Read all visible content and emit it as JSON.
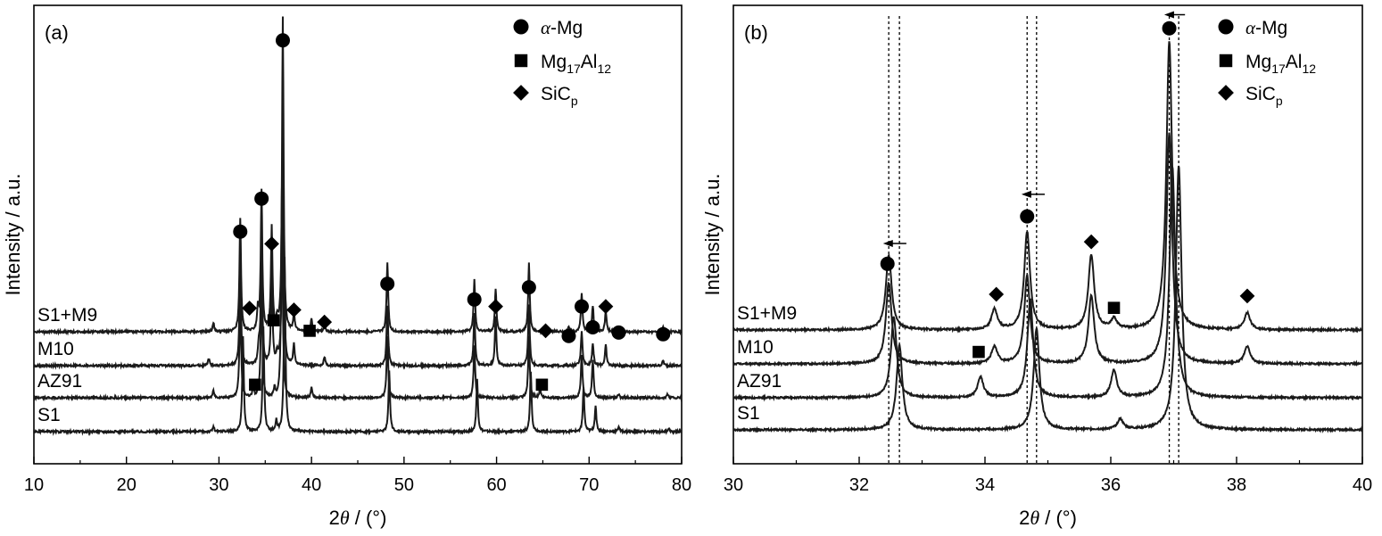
{
  "chart_data": [
    {
      "type": "line",
      "panel_label": "(a)",
      "xlabel_prefix": "2",
      "xlabel_theta": "θ",
      "xlabel_suffix": " / (°)",
      "ylabel": "Intensity / a.u.",
      "xlim": [
        10,
        80
      ],
      "xticks": [
        "10",
        "20",
        "30",
        "40",
        "50",
        "60",
        "70",
        "80"
      ],
      "yticks": [],
      "grid": false,
      "legend_position": "top-right",
      "legend": [
        {
          "marker": "circle",
          "label": "α-Mg"
        },
        {
          "marker": "square",
          "label": "Mg17Al12"
        },
        {
          "marker": "diamond",
          "label": "SiCp"
        }
      ],
      "series": [
        {
          "name": "S1+M9",
          "baseline": 3,
          "peaks": [
            [
              29.4,
              0.5
            ],
            [
              32.3,
              6.5
            ],
            [
              34.2,
              1.2
            ],
            [
              34.6,
              8
            ],
            [
              35.7,
              6
            ],
            [
              36.3,
              0.6
            ],
            [
              36.9,
              18
            ],
            [
              38.1,
              1
            ],
            [
              40.0,
              0.7
            ],
            [
              41.4,
              0.4
            ],
            [
              48.2,
              4
            ],
            [
              57.6,
              3
            ],
            [
              59.9,
              2.5
            ],
            [
              63.5,
              4
            ],
            [
              67.8,
              0.3
            ],
            [
              69.2,
              2.2
            ],
            [
              70.4,
              1.5
            ],
            [
              71.8,
              1.2
            ],
            [
              73.2,
              0.3
            ],
            [
              78.0,
              0.3
            ]
          ]
        },
        {
          "name": "M10",
          "baseline": 2,
          "peaks": [
            [
              28.9,
              0.4
            ],
            [
              32.3,
              6
            ],
            [
              34.3,
              1
            ],
            [
              34.6,
              7
            ],
            [
              35.7,
              5.5
            ],
            [
              36.3,
              0.6
            ],
            [
              36.9,
              14
            ],
            [
              38.1,
              1.2
            ],
            [
              41.4,
              0.5
            ],
            [
              48.2,
              3.5
            ],
            [
              57.6,
              3
            ],
            [
              59.9,
              2.8
            ],
            [
              63.5,
              3.5
            ],
            [
              69.2,
              2
            ],
            [
              70.4,
              1.3
            ],
            [
              71.8,
              1.2
            ],
            [
              78.0,
              0.3
            ]
          ]
        },
        {
          "name": "AZ91",
          "baseline": 1,
          "peaks": [
            [
              29.4,
              0.4
            ],
            [
              32.3,
              6
            ],
            [
              33.7,
              0.6
            ],
            [
              34.6,
              7
            ],
            [
              36.0,
              0.5
            ],
            [
              36.8,
              12
            ],
            [
              40.0,
              0.6
            ],
            [
              48.2,
              3.5
            ],
            [
              57.6,
              3
            ],
            [
              63.5,
              3.5
            ],
            [
              64.7,
              0.5
            ],
            [
              69.2,
              2.5
            ],
            [
              70.4,
              2.2
            ],
            [
              73.2,
              0.2
            ],
            [
              78.5,
              0.2
            ]
          ]
        },
        {
          "name": "S1",
          "baseline": 0,
          "peaks": [
            [
              29.4,
              0.3
            ],
            [
              32.6,
              5.5
            ],
            [
              34.8,
              6
            ],
            [
              36.2,
              0.6
            ],
            [
              37.1,
              10
            ],
            [
              48.4,
              3.5
            ],
            [
              57.9,
              3
            ],
            [
              63.7,
              3.5
            ],
            [
              69.4,
              2.5
            ],
            [
              70.7,
              1.5
            ],
            [
              73.2,
              0.3
            ],
            [
              78.6,
              0.2
            ]
          ]
        }
      ],
      "annotations": [
        {
          "marker": "circle",
          "x": 32.3,
          "y": 11.5
        },
        {
          "marker": "circle",
          "x": 34.6,
          "y": 13.4
        },
        {
          "marker": "circle",
          "x": 36.9,
          "y": 22.5
        },
        {
          "marker": "circle",
          "x": 48.2,
          "y": 8.5
        },
        {
          "marker": "circle",
          "x": 57.6,
          "y": 7.6
        },
        {
          "marker": "circle",
          "x": 63.5,
          "y": 8.3
        },
        {
          "marker": "circle",
          "x": 67.8,
          "y": 5.5
        },
        {
          "marker": "circle",
          "x": 69.2,
          "y": 7.2
        },
        {
          "marker": "circle",
          "x": 70.4,
          "y": 6
        },
        {
          "marker": "circle",
          "x": 73.2,
          "y": 5.7
        },
        {
          "marker": "circle",
          "x": 78.0,
          "y": 5.6
        },
        {
          "marker": "diamond",
          "x": 33.3,
          "y": 7.1
        },
        {
          "marker": "diamond",
          "x": 35.7,
          "y": 10.8
        },
        {
          "marker": "diamond",
          "x": 38.1,
          "y": 7.0
        },
        {
          "marker": "diamond",
          "x": 41.4,
          "y": 6.3
        },
        {
          "marker": "diamond",
          "x": 59.9,
          "y": 7.2
        },
        {
          "marker": "diamond",
          "x": 65.3,
          "y": 5.8
        },
        {
          "marker": "diamond",
          "x": 71.8,
          "y": 7.2
        },
        {
          "marker": "square",
          "x": 35.9,
          "y": 6.4
        },
        {
          "marker": "square",
          "x": 39.8,
          "y": 5.8
        },
        {
          "marker": "square",
          "x": 33.9,
          "y": 2.7
        },
        {
          "marker": "square",
          "x": 64.9,
          "y": 2.7
        }
      ]
    },
    {
      "type": "line",
      "panel_label": "(b)",
      "xlabel_prefix": "2",
      "xlabel_theta": "θ",
      "xlabel_suffix": " / (°)",
      "ylabel": "Intensity / a.u.",
      "xlim": [
        30,
        40
      ],
      "xticks": [
        "30",
        "32",
        "34",
        "36",
        "38",
        "40"
      ],
      "yticks": [],
      "grid": false,
      "legend_position": "top-right",
      "legend": [
        {
          "marker": "circle",
          "label": "α-Mg"
        },
        {
          "marker": "square",
          "label": "Mg17Al12"
        },
        {
          "marker": "diamond",
          "label": "SiCp"
        }
      ],
      "series": [
        {
          "name": "S1+M9",
          "baseline": 3,
          "peaks": [
            [
              32.47,
              2.2
            ],
            [
              34.15,
              0.6
            ],
            [
              34.67,
              2.9
            ],
            [
              35.69,
              2.2
            ],
            [
              36.05,
              0.3
            ],
            [
              36.93,
              8.5
            ],
            [
              38.17,
              0.5
            ]
          ]
        },
        {
          "name": "M10",
          "baseline": 2,
          "peaks": [
            [
              32.47,
              2.4
            ],
            [
              34.15,
              0.5
            ],
            [
              34.67,
              2.6
            ],
            [
              35.69,
              2.0
            ],
            [
              36.93,
              6.8
            ],
            [
              38.17,
              0.5
            ]
          ]
        },
        {
          "name": "AZ91",
          "baseline": 1,
          "peaks": [
            [
              32.55,
              2.4
            ],
            [
              33.93,
              0.6
            ],
            [
              34.72,
              2.9
            ],
            [
              36.05,
              0.8
            ],
            [
              36.98,
              6.8
            ]
          ]
        },
        {
          "name": "S1",
          "baseline": 0,
          "peaks": [
            [
              32.64,
              2.5
            ],
            [
              34.82,
              3.0
            ],
            [
              36.15,
              0.3
            ],
            [
              37.08,
              7.8
            ]
          ]
        }
      ],
      "annotations": [
        {
          "marker": "circle",
          "x": 32.45,
          "y": 4.9
        },
        {
          "marker": "circle",
          "x": 34.67,
          "y": 6.3
        },
        {
          "marker": "circle",
          "x": 36.93,
          "y": 11.85
        },
        {
          "marker": "diamond",
          "x": 34.18,
          "y": 4.0
        },
        {
          "marker": "diamond",
          "x": 35.69,
          "y": 5.55
        },
        {
          "marker": "diamond",
          "x": 38.17,
          "y": 3.95
        },
        {
          "marker": "square",
          "x": 36.05,
          "y": 3.6
        },
        {
          "marker": "square",
          "x": 33.9,
          "y": 2.3
        }
      ],
      "dashed_lines": [
        32.47,
        32.64,
        34.67,
        34.82,
        36.93,
        37.08
      ],
      "shift_arrows": [
        {
          "from": 32.75,
          "to": 32.38,
          "y": 5.5
        },
        {
          "from": 34.95,
          "to": 34.58,
          "y": 6.95
        },
        {
          "from": 37.18,
          "to": 36.85,
          "y": 12.25
        }
      ]
    }
  ]
}
